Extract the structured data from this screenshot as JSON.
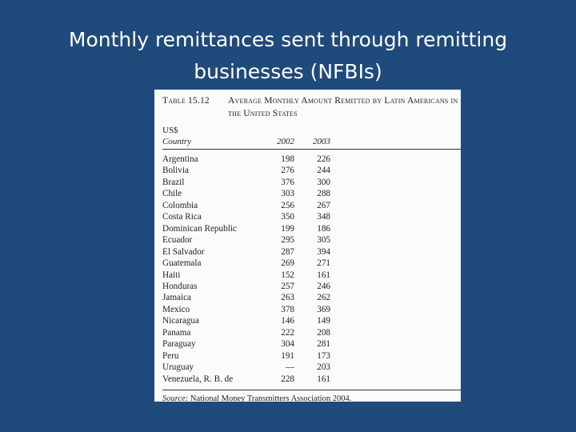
{
  "slide": {
    "title_line1": "Monthly remittances sent through remitting",
    "title_line2": "businesses (NFBIs)"
  },
  "table": {
    "label": "Table 15.12",
    "caption": "Average Monthly Amount Remitted by Latin Americans in the United States",
    "unit": "US$",
    "headers": {
      "country": "Country",
      "y2002": "2002",
      "y2003": "2003"
    },
    "rows": [
      {
        "country": "Argentina",
        "y2002": "198",
        "y2003": "226"
      },
      {
        "country": "Bolivia",
        "y2002": "276",
        "y2003": "244"
      },
      {
        "country": "Brazil",
        "y2002": "376",
        "y2003": "300"
      },
      {
        "country": "Chile",
        "y2002": "303",
        "y2003": "288"
      },
      {
        "country": "Colombia",
        "y2002": "256",
        "y2003": "267"
      },
      {
        "country": "Costa Rica",
        "y2002": "350",
        "y2003": "348"
      },
      {
        "country": "Dominican Republic",
        "y2002": "199",
        "y2003": "186"
      },
      {
        "country": "Ecuador",
        "y2002": "295",
        "y2003": "305"
      },
      {
        "country": "El Salvador",
        "y2002": "287",
        "y2003": "394"
      },
      {
        "country": "Guatemala",
        "y2002": "269",
        "y2003": "271"
      },
      {
        "country": "Haiti",
        "y2002": "152",
        "y2003": "161"
      },
      {
        "country": "Honduras",
        "y2002": "257",
        "y2003": "246"
      },
      {
        "country": "Jamaica",
        "y2002": "263",
        "y2003": "262"
      },
      {
        "country": "Mexico",
        "y2002": "378",
        "y2003": "369"
      },
      {
        "country": "Nicaragua",
        "y2002": "146",
        "y2003": "149"
      },
      {
        "country": "Panama",
        "y2002": "222",
        "y2003": "208"
      },
      {
        "country": "Paraguay",
        "y2002": "304",
        "y2003": "281"
      },
      {
        "country": "Peru",
        "y2002": "191",
        "y2003": "173"
      },
      {
        "country": "Uruguay",
        "y2002": "—",
        "y2003": "203"
      },
      {
        "country": "Venezuela, R. B. de",
        "y2002": "228",
        "y2003": "161"
      }
    ],
    "source_label": "Source:",
    "source_text": "National Money Transmitters Association 2004."
  }
}
